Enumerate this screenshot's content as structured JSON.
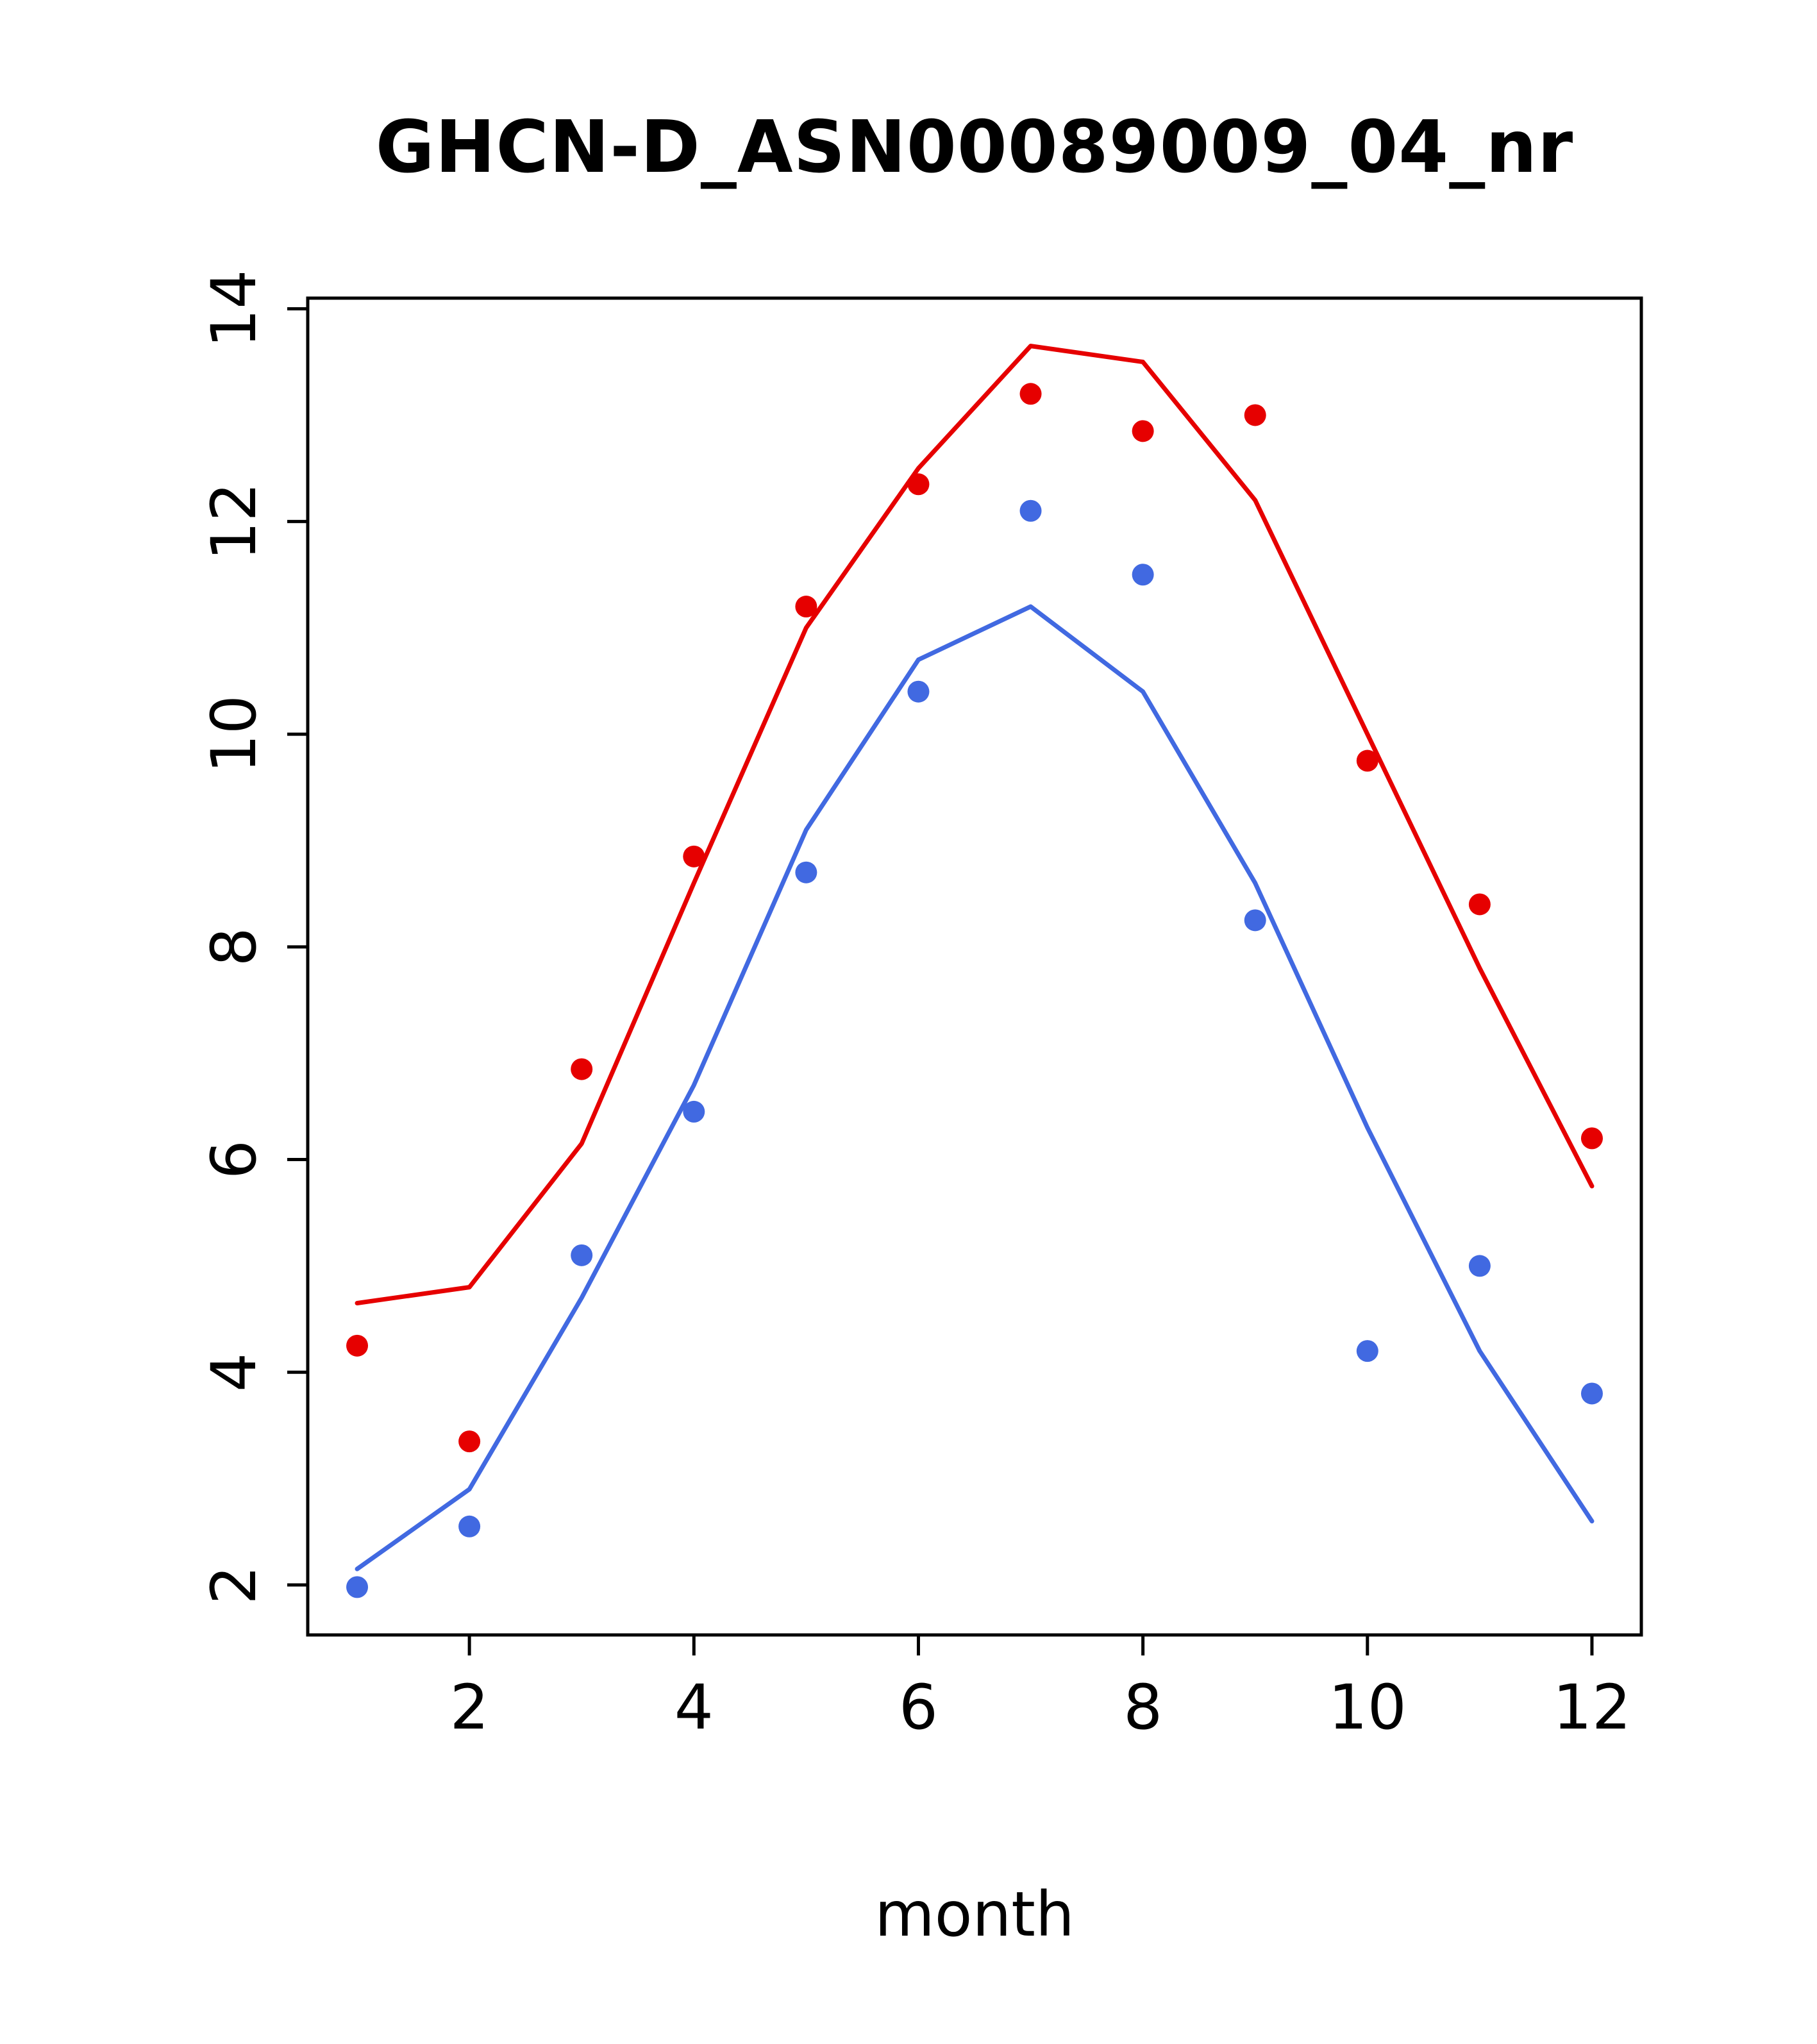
{
  "chart_data": {
    "type": "line",
    "title": "GHCN-D_ASN00089009_04_nr",
    "xlabel": "month",
    "ylabel": "",
    "x": [
      1,
      2,
      3,
      4,
      5,
      6,
      7,
      8,
      9,
      10,
      11,
      12
    ],
    "xlim": [
      0.56,
      12.44
    ],
    "ylim": [
      1.53,
      14.1
    ],
    "xticks": [
      2,
      4,
      6,
      8,
      10,
      12
    ],
    "yticks": [
      2,
      4,
      6,
      8,
      10,
      12,
      14
    ],
    "grid": false,
    "legend": "none",
    "axis_color": "#000000",
    "series": [
      {
        "name": "red-line",
        "type": "line",
        "color": "#e60000",
        "values": [
          4.65,
          4.8,
          6.15,
          8.6,
          11.0,
          12.5,
          13.65,
          13.5,
          12.2,
          10.0,
          7.8,
          5.75
        ]
      },
      {
        "name": "red-points",
        "type": "scatter",
        "color": "#e60000",
        "values": [
          4.25,
          3.35,
          6.85,
          8.85,
          11.2,
          12.35,
          13.2,
          12.85,
          13.0,
          9.75,
          8.4,
          6.2
        ]
      },
      {
        "name": "blue-line",
        "type": "line",
        "color": "#4169e1",
        "values": [
          2.15,
          2.9,
          4.7,
          6.7,
          9.1,
          10.7,
          11.2,
          10.4,
          8.6,
          6.3,
          4.2,
          2.6
        ]
      },
      {
        "name": "blue-points",
        "type": "scatter",
        "color": "#4169e1",
        "values": [
          1.98,
          2.55,
          5.1,
          6.45,
          8.7,
          10.4,
          12.1,
          11.5,
          8.25,
          4.2,
          5.0,
          3.8
        ]
      }
    ]
  }
}
